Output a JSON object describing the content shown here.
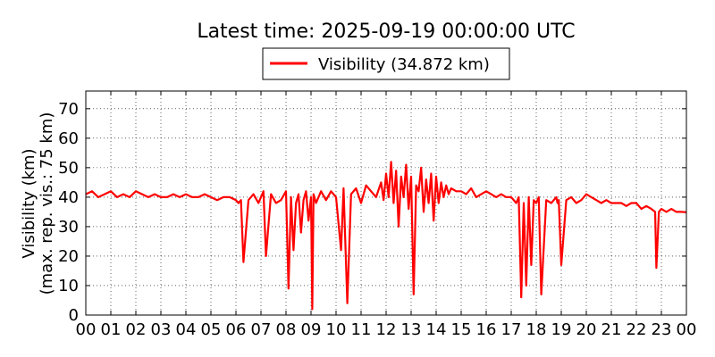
{
  "chart_data": {
    "type": "line",
    "title": "Latest time: 2025-09-19 00:00:00 UTC",
    "ylabel_line1": "Visibility (km)",
    "ylabel_line2": "(max. rep. vis.: 75 km)",
    "xlabel": "",
    "legend_position": "top-center",
    "grid": true,
    "xlim": [
      0,
      24
    ],
    "ylim": [
      0,
      76
    ],
    "x_ticks": [
      "00",
      "01",
      "02",
      "03",
      "04",
      "05",
      "06",
      "07",
      "08",
      "09",
      "10",
      "11",
      "12",
      "13",
      "14",
      "15",
      "16",
      "17",
      "18",
      "19",
      "20",
      "21",
      "22",
      "23",
      "00"
    ],
    "y_ticks": [
      0,
      10,
      20,
      30,
      40,
      50,
      60,
      70
    ],
    "series": [
      {
        "name": "Visibility (34.872 km)",
        "color": "#ff0000",
        "x": [
          0,
          0.25,
          0.5,
          0.75,
          1,
          1.25,
          1.5,
          1.75,
          2,
          2.25,
          2.5,
          2.75,
          3,
          3.25,
          3.5,
          3.75,
          4,
          4.25,
          4.5,
          4.75,
          5,
          5.25,
          5.5,
          5.75,
          6,
          6.1,
          6.2,
          6.3,
          6.5,
          6.7,
          6.9,
          7.0,
          7.1,
          7.2,
          7.4,
          7.6,
          7.8,
          8.0,
          8.1,
          8.2,
          8.3,
          8.4,
          8.5,
          8.6,
          8.7,
          8.8,
          8.9,
          9.0,
          9.05,
          9.1,
          9.2,
          9.4,
          9.6,
          9.8,
          10.0,
          10.2,
          10.3,
          10.45,
          10.6,
          10.8,
          11.0,
          11.2,
          11.4,
          11.6,
          11.8,
          11.9,
          12.0,
          12.1,
          12.2,
          12.3,
          12.4,
          12.5,
          12.6,
          12.7,
          12.8,
          12.9,
          13.0,
          13.1,
          13.2,
          13.3,
          13.4,
          13.5,
          13.6,
          13.7,
          13.8,
          13.9,
          14.0,
          14.1,
          14.2,
          14.3,
          14.4,
          14.5,
          14.6,
          14.8,
          15.0,
          15.2,
          15.4,
          15.6,
          15.8,
          16.0,
          16.2,
          16.4,
          16.6,
          16.8,
          17.0,
          17.1,
          17.2,
          17.3,
          17.4,
          17.5,
          17.6,
          17.7,
          17.8,
          17.9,
          18.0,
          18.1,
          18.2,
          18.4,
          18.6,
          18.8,
          18.85,
          18.9,
          19.0,
          19.2,
          19.4,
          19.6,
          19.8,
          20.0,
          20.2,
          20.4,
          20.6,
          20.8,
          21.0,
          21.2,
          21.4,
          21.6,
          21.8,
          22.0,
          22.2,
          22.4,
          22.6,
          22.75,
          22.8,
          22.9,
          23.0,
          23.2,
          23.4,
          23.6,
          23.8,
          24.0
        ],
        "values": [
          41,
          42,
          40,
          41,
          42,
          40,
          41,
          40,
          42,
          41,
          40,
          41,
          40,
          40,
          41,
          40,
          41,
          40,
          40,
          41,
          40,
          39,
          40,
          40,
          39,
          38,
          39,
          18,
          39,
          41,
          38,
          40,
          42,
          20,
          41,
          38,
          39,
          42,
          9,
          40,
          22,
          38,
          41,
          28,
          39,
          42,
          32,
          40,
          2,
          41,
          38,
          42,
          39,
          42,
          40,
          22,
          43,
          4,
          41,
          43,
          38,
          44,
          42,
          40,
          45,
          39,
          48,
          40,
          52,
          38,
          49,
          30,
          47,
          40,
          51,
          36,
          47,
          7,
          44,
          42,
          50,
          35,
          46,
          38,
          48,
          32,
          47,
          38,
          45,
          40,
          44,
          41,
          43,
          42,
          42,
          41,
          43,
          40,
          41,
          42,
          41,
          40,
          41,
          40,
          40,
          39,
          38,
          40,
          6,
          38,
          10,
          40,
          17,
          39,
          38,
          40,
          7,
          39,
          38,
          40,
          38,
          39,
          17,
          39,
          40,
          38,
          39,
          41,
          40,
          39,
          38,
          39,
          38,
          38,
          38,
          37,
          38,
          38,
          36,
          37,
          36,
          35,
          16,
          35,
          36,
          35,
          36,
          35,
          35,
          34.872
        ]
      }
    ]
  }
}
